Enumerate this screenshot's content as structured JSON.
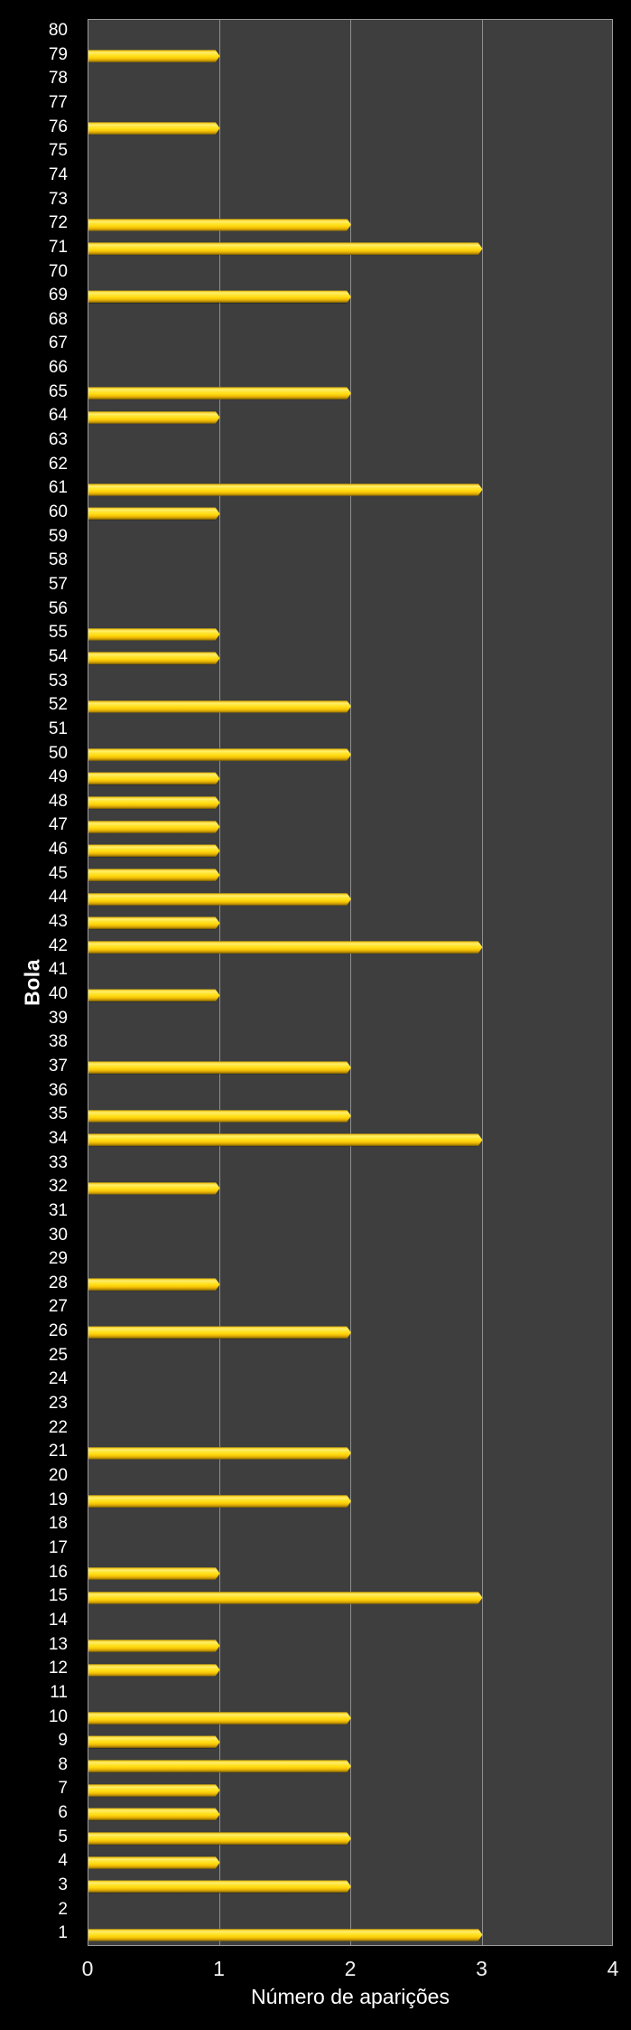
{
  "page": {
    "background": "#000000"
  },
  "chart_data": {
    "type": "bar",
    "orientation": "horizontal",
    "xlabel": "Número de aparições",
    "ylabel": "Bola",
    "xlim": [
      0,
      4
    ],
    "xticks": [
      "0",
      "1",
      "2",
      "3",
      "4"
    ],
    "grid": true,
    "legend": "none",
    "categories": [
      1,
      2,
      3,
      4,
      5,
      6,
      7,
      8,
      9,
      10,
      11,
      12,
      13,
      14,
      15,
      16,
      17,
      18,
      19,
      20,
      21,
      22,
      23,
      24,
      25,
      26,
      27,
      28,
      29,
      30,
      31,
      32,
      33,
      34,
      35,
      36,
      37,
      38,
      39,
      40,
      41,
      42,
      43,
      44,
      45,
      46,
      47,
      48,
      49,
      50,
      51,
      52,
      53,
      54,
      55,
      56,
      57,
      58,
      59,
      60,
      61,
      62,
      63,
      64,
      65,
      66,
      67,
      68,
      69,
      70,
      71,
      72,
      73,
      74,
      75,
      76,
      77,
      78,
      79,
      80
    ],
    "values": [
      3,
      0,
      2,
      1,
      2,
      1,
      1,
      2,
      1,
      2,
      0,
      1,
      1,
      0,
      3,
      1,
      0,
      0,
      2,
      0,
      2,
      0,
      0,
      0,
      0,
      2,
      0,
      1,
      0,
      0,
      0,
      1,
      0,
      3,
      2,
      0,
      2,
      0,
      0,
      1,
      0,
      3,
      1,
      2,
      1,
      1,
      1,
      1,
      1,
      2,
      0,
      2,
      0,
      1,
      1,
      0,
      0,
      0,
      0,
      1,
      3,
      0,
      0,
      1,
      2,
      0,
      0,
      0,
      2,
      0,
      3,
      2,
      0,
      0,
      0,
      1,
      0,
      0,
      1,
      0
    ],
    "category_display_order": "descending-top-to-bottom",
    "colors": {
      "bar": "#FFD90E",
      "plot_background": "#3E3E3E",
      "page_background": "#000000",
      "gridline": "#9C9C9C",
      "text": "#FFFFFF"
    }
  }
}
